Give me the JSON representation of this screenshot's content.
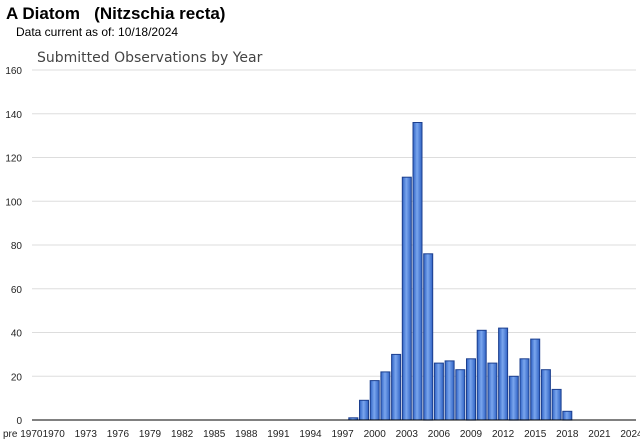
{
  "header": {
    "title": "A Diatom   (Nitzschia recta)",
    "subtitle": "Data current as of: 10/18/2024"
  },
  "colors": {
    "bar_fill": "#4a7fd8",
    "bar_stroke": "#1c3f8e",
    "grid": "#dddddd",
    "axis": "#000000"
  },
  "chart_data": {
    "type": "bar",
    "title": "Submitted Observations by Year",
    "xlabel": "",
    "ylabel": "",
    "ylim": [
      0,
      160
    ],
    "yticks": [
      0,
      20,
      40,
      60,
      80,
      100,
      120,
      140,
      160
    ],
    "grid": true,
    "x_tick_labels": [
      "pre 1970",
      "1970",
      "1973",
      "1976",
      "1979",
      "1982",
      "1985",
      "1988",
      "1991",
      "1994",
      "1997",
      "2000",
      "2003",
      "2006",
      "2009",
      "2012",
      "2015",
      "2018",
      "2021",
      "2024"
    ],
    "categories": [
      "pre 1970",
      "1970",
      "1971",
      "1972",
      "1973",
      "1974",
      "1975",
      "1976",
      "1977",
      "1978",
      "1979",
      "1980",
      "1981",
      "1982",
      "1983",
      "1984",
      "1985",
      "1986",
      "1987",
      "1988",
      "1989",
      "1990",
      "1991",
      "1992",
      "1993",
      "1994",
      "1995",
      "1996",
      "1997",
      "1998",
      "1999",
      "2000",
      "2001",
      "2002",
      "2003",
      "2004",
      "2005",
      "2006",
      "2007",
      "2008",
      "2009",
      "2010",
      "2011",
      "2012",
      "2013",
      "2014",
      "2015",
      "2016",
      "2017",
      "2018",
      "2019",
      "2020",
      "2021",
      "2022",
      "2023",
      "2024"
    ],
    "values": [
      0,
      0,
      0,
      0,
      0,
      0,
      0,
      0,
      0,
      0,
      0,
      0,
      0,
      0,
      0,
      0,
      0,
      0,
      0,
      0,
      0,
      0,
      0,
      0,
      0,
      0,
      0,
      0,
      0,
      1,
      9,
      18,
      22,
      30,
      111,
      136,
      76,
      26,
      27,
      23,
      28,
      41,
      26,
      42,
      20,
      28,
      37,
      23,
      14,
      4,
      0,
      0,
      0,
      0,
      0,
      0
    ]
  }
}
